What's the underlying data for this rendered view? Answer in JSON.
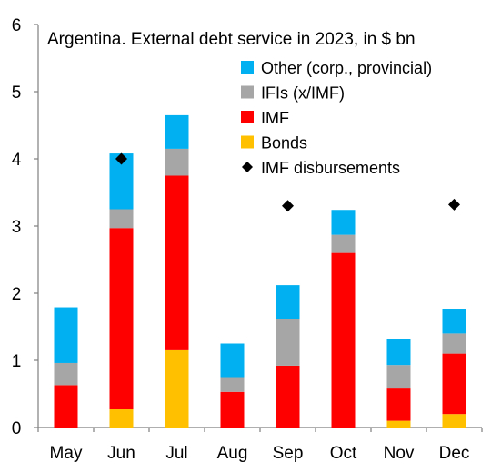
{
  "chart_data": {
    "type": "bar",
    "title": "Argentina. External debt service in 2023, in $ bn",
    "categories": [
      "May",
      "Jun",
      "Jul",
      "Aug",
      "Sep",
      "Oct",
      "Nov",
      "Dec"
    ],
    "ylim": [
      0,
      6
    ],
    "yticks": [
      0,
      1,
      2,
      3,
      4,
      5,
      6
    ],
    "stacked": true,
    "grid": false,
    "legend_position": "top-right",
    "series": [
      {
        "name": "Bonds",
        "type": "bar",
        "color": "#FFC000",
        "values": [
          0,
          0.27,
          1.15,
          0,
          0,
          0,
          0.1,
          0.2
        ]
      },
      {
        "name": "IMF",
        "type": "bar",
        "color": "#FF0000",
        "values": [
          0.63,
          2.7,
          2.6,
          0.53,
          0.92,
          2.6,
          0.48,
          0.9
        ]
      },
      {
        "name": "IFIs (x/IMF)",
        "type": "bar",
        "color": "#A6A6A6",
        "values": [
          0.33,
          0.28,
          0.4,
          0.22,
          0.7,
          0.27,
          0.35,
          0.3
        ]
      },
      {
        "name": "Other (corp., provincial)",
        "type": "bar",
        "color": "#00B0F0",
        "values": [
          0.83,
          0.83,
          0.5,
          0.5,
          0.5,
          0.37,
          0.39,
          0.37
        ]
      },
      {
        "name": "IMF disbursements",
        "type": "marker",
        "color": "#000000",
        "values": [
          null,
          4.0,
          null,
          null,
          3.3,
          null,
          null,
          3.32
        ]
      }
    ],
    "legend_order": [
      "Other (corp., provincial)",
      "IFIs (x/IMF)",
      "IMF",
      "Bonds",
      "IMF disbursements"
    ]
  }
}
